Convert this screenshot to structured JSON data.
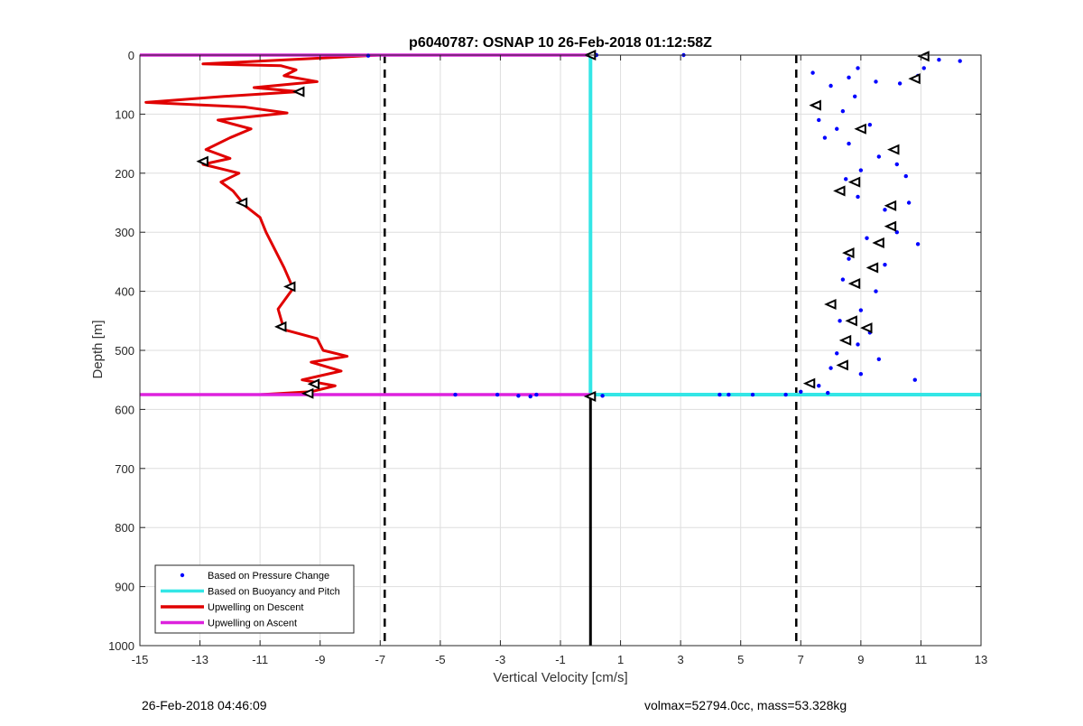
{
  "chart_data": {
    "type": "line",
    "title": "p6040787: OSNAP 10 26-Feb-2018 01:12:58Z",
    "xlabel": "Vertical Velocity [cm/s]",
    "ylabel": "Depth [m]",
    "xlim": [
      -15,
      13
    ],
    "ylim": [
      0,
      1000
    ],
    "y_reversed": true,
    "xticks": [
      -15,
      -13,
      -11,
      -9,
      -7,
      -5,
      -3,
      -1,
      1,
      3,
      5,
      7,
      9,
      11,
      13
    ],
    "yticks": [
      0,
      100,
      200,
      300,
      400,
      500,
      600,
      700,
      800,
      900,
      1000
    ],
    "grid": true,
    "legend_position": "bottom-left",
    "legend": [
      {
        "label": "Based on Pressure Change",
        "color": "#0000ff",
        "kind": "dot"
      },
      {
        "label": "Based on Buoyancy and Pitch",
        "color": "#33e6e6",
        "kind": "line"
      },
      {
        "label": "Upwelling on Descent",
        "color": "#e00000",
        "kind": "line"
      },
      {
        "label": "Upwelling on Ascent",
        "color": "#dd22dd",
        "kind": "line"
      }
    ],
    "reference_lines": {
      "dashed_x": [
        -6.85,
        6.85
      ],
      "zero_line": {
        "x": 0,
        "y_from": 580,
        "y_to": 1000
      },
      "ascent_depths": [
        0,
        575
      ]
    },
    "series": {
      "upwelling_descent": [
        [
          -7.0,
          0
        ],
        [
          -12.9,
          15
        ],
        [
          -10.3,
          18
        ],
        [
          -9.8,
          25
        ],
        [
          -10.2,
          35
        ],
        [
          -9.1,
          45
        ],
        [
          -11.2,
          55
        ],
        [
          -9.7,
          62
        ],
        [
          -12.2,
          70
        ],
        [
          -14.8,
          80
        ],
        [
          -11.5,
          88
        ],
        [
          -10.1,
          98
        ],
        [
          -12.4,
          110
        ],
        [
          -11.3,
          125
        ],
        [
          -12.0,
          140
        ],
        [
          -12.8,
          160
        ],
        [
          -12.0,
          175
        ],
        [
          -12.9,
          185
        ],
        [
          -11.7,
          200
        ],
        [
          -12.3,
          215
        ],
        [
          -11.9,
          230
        ],
        [
          -11.5,
          255
        ],
        [
          -11.0,
          275
        ],
        [
          -10.8,
          300
        ],
        [
          -10.5,
          330
        ],
        [
          -10.2,
          360
        ],
        [
          -9.9,
          395
        ],
        [
          -10.4,
          430
        ],
        [
          -10.2,
          465
        ],
        [
          -9.1,
          480
        ],
        [
          -8.9,
          500
        ],
        [
          -8.1,
          510
        ],
        [
          -9.3,
          520
        ],
        [
          -8.3,
          535
        ],
        [
          -9.6,
          550
        ],
        [
          -8.5,
          560
        ],
        [
          -9.3,
          570
        ],
        [
          -11.0,
          575
        ]
      ],
      "upwelling_ascent": [
        [
          -15,
          0
        ],
        [
          0,
          0
        ],
        [
          -15,
          575
        ],
        [
          0,
          575
        ]
      ],
      "buoyancy_pitch": [
        [
          0,
          0
        ],
        [
          0,
          575
        ],
        [
          13,
          575
        ]
      ],
      "pressure_change": [
        [
          12.3,
          10
        ],
        [
          11.6,
          8
        ],
        [
          11.1,
          22
        ],
        [
          10.9,
          35
        ],
        [
          10.3,
          48
        ],
        [
          7.4,
          30
        ],
        [
          8.0,
          52
        ],
        [
          8.6,
          38
        ],
        [
          8.9,
          22
        ],
        [
          9.5,
          45
        ],
        [
          8.8,
          70
        ],
        [
          8.4,
          95
        ],
        [
          7.6,
          110
        ],
        [
          8.2,
          125
        ],
        [
          9.3,
          118
        ],
        [
          7.8,
          140
        ],
        [
          8.6,
          150
        ],
        [
          9.6,
          172
        ],
        [
          10.2,
          185
        ],
        [
          9.0,
          195
        ],
        [
          8.5,
          210
        ],
        [
          10.5,
          205
        ],
        [
          8.9,
          240
        ],
        [
          9.8,
          262
        ],
        [
          10.6,
          250
        ],
        [
          10.2,
          300
        ],
        [
          9.2,
          310
        ],
        [
          10.9,
          320
        ],
        [
          8.6,
          345
        ],
        [
          9.8,
          355
        ],
        [
          8.4,
          380
        ],
        [
          9.5,
          400
        ],
        [
          8.1,
          420
        ],
        [
          9.0,
          432
        ],
        [
          8.3,
          450
        ],
        [
          9.3,
          470
        ],
        [
          8.9,
          490
        ],
        [
          8.2,
          505
        ],
        [
          9.6,
          515
        ],
        [
          8.0,
          530
        ],
        [
          9.0,
          540
        ],
        [
          10.8,
          550
        ],
        [
          7.6,
          560
        ],
        [
          7.0,
          570
        ],
        [
          7.9,
          572
        ],
        [
          6.5,
          575
        ],
        [
          5.4,
          575
        ],
        [
          4.3,
          575
        ],
        [
          4.6,
          575
        ],
        [
          0.4,
          577
        ],
        [
          -1.8,
          575
        ],
        [
          -3.1,
          575
        ],
        [
          -4.5,
          575
        ],
        [
          -2.4,
          577
        ],
        [
          -7.4,
          1
        ],
        [
          0.2,
          0
        ],
        [
          3.1,
          0
        ],
        [
          -2.0,
          578
        ]
      ],
      "markers_pressure": [
        [
          11.1,
          2
        ],
        [
          10.8,
          40
        ],
        [
          7.5,
          85
        ],
        [
          9.0,
          125
        ],
        [
          10.1,
          160
        ],
        [
          8.8,
          215
        ],
        [
          8.3,
          230
        ],
        [
          10.0,
          255
        ],
        [
          10.0,
          290
        ],
        [
          9.6,
          318
        ],
        [
          8.6,
          335
        ],
        [
          9.4,
          360
        ],
        [
          8.8,
          387
        ],
        [
          8.0,
          422
        ],
        [
          8.7,
          450
        ],
        [
          9.2,
          462
        ],
        [
          8.5,
          483
        ],
        [
          8.4,
          525
        ],
        [
          7.3,
          556
        ]
      ],
      "markers_descent": [
        [
          -9.7,
          62
        ],
        [
          -12.9,
          180
        ],
        [
          -11.6,
          250
        ],
        [
          -10.0,
          392
        ],
        [
          -10.3,
          460
        ],
        [
          -9.2,
          557
        ],
        [
          -9.4,
          573
        ],
        [
          0,
          0
        ],
        [
          0,
          578
        ]
      ]
    }
  },
  "footer": {
    "left": "26-Feb-2018 04:46:09",
    "right": "volmax=52794.0cc, mass=53.328kg"
  }
}
